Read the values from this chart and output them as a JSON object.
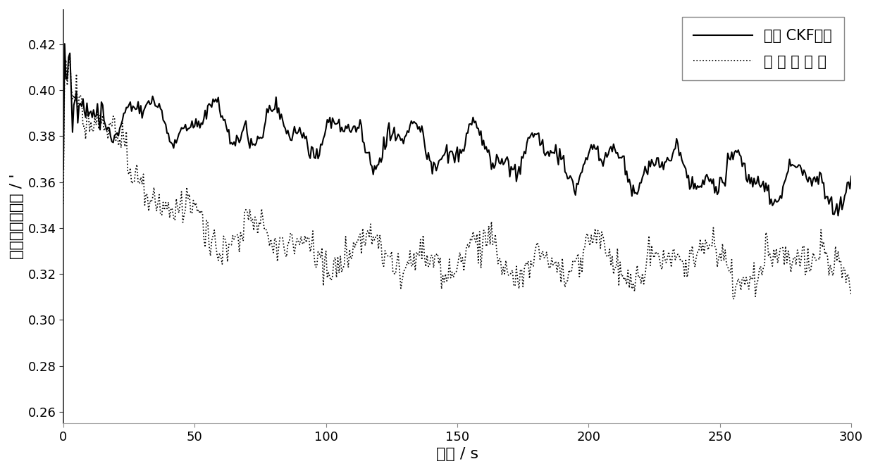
{
  "title": "",
  "xlabel": "时间 / s",
  "ylabel": "横摇失准角误差 / '",
  "xlim": [
    0,
    300
  ],
  "ylim": [
    0.255,
    0.435
  ],
  "yticks": [
    0.26,
    0.28,
    0.3,
    0.32,
    0.34,
    0.36,
    0.38,
    0.4,
    0.42
  ],
  "xticks": [
    0,
    50,
    100,
    150,
    200,
    250,
    300
  ],
  "legend1": "传统 CKF算法",
  "legend2": "本 发 明 算 法",
  "line_color": "#000000",
  "background_color": "#ffffff",
  "seed": 42
}
